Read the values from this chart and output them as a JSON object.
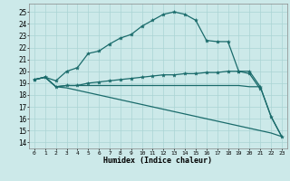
{
  "xlabel": "Humidex (Indice chaleur)",
  "xlim": [
    -0.5,
    23.5
  ],
  "ylim": [
    13.5,
    25.7
  ],
  "yticks": [
    14,
    15,
    16,
    17,
    18,
    19,
    20,
    21,
    22,
    23,
    24,
    25
  ],
  "xticks": [
    0,
    1,
    2,
    3,
    4,
    5,
    6,
    7,
    8,
    9,
    10,
    11,
    12,
    13,
    14,
    15,
    16,
    17,
    18,
    19,
    20,
    21,
    22,
    23
  ],
  "background_color": "#cce9e9",
  "grid_color": "#aad4d4",
  "line_color": "#1a6b6b",
  "lines": [
    {
      "x": [
        0,
        1,
        2,
        3,
        4,
        5,
        6,
        7,
        8,
        9,
        10,
        11,
        12,
        13,
        14,
        15,
        16,
        17,
        18,
        19,
        20,
        21
      ],
      "y": [
        19.3,
        19.5,
        19.2,
        20.0,
        20.3,
        21.5,
        21.7,
        22.3,
        22.8,
        23.1,
        23.8,
        24.3,
        24.8,
        25.0,
        24.8,
        24.3,
        22.6,
        22.5,
        22.5,
        20.0,
        19.8,
        18.5
      ],
      "marker": true
    },
    {
      "x": [
        0,
        1,
        2,
        3,
        4,
        5,
        6,
        7,
        8,
        9,
        10,
        11,
        12,
        13,
        14,
        15,
        16,
        17,
        18,
        19,
        20,
        21,
        22,
        23
      ],
      "y": [
        19.3,
        19.5,
        18.7,
        18.8,
        18.8,
        19.0,
        19.1,
        19.2,
        19.3,
        19.4,
        19.5,
        19.6,
        19.7,
        19.7,
        19.8,
        19.8,
        19.9,
        19.9,
        20.0,
        20.0,
        20.0,
        18.7,
        16.2,
        14.5
      ],
      "marker": true
    },
    {
      "x": [
        0,
        1,
        2,
        3,
        4,
        5,
        6,
        7,
        8,
        9,
        10,
        11,
        12,
        13,
        14,
        15,
        16,
        17,
        18,
        19,
        20,
        21,
        22,
        23
      ],
      "y": [
        19.3,
        19.5,
        18.7,
        18.8,
        18.8,
        18.8,
        18.8,
        18.8,
        18.8,
        18.8,
        18.8,
        18.8,
        18.8,
        18.8,
        18.8,
        18.8,
        18.8,
        18.8,
        18.8,
        18.8,
        18.7,
        18.7,
        16.2,
        14.5
      ],
      "marker": false
    },
    {
      "x": [
        0,
        1,
        2,
        3,
        4,
        5,
        6,
        7,
        8,
        9,
        10,
        11,
        12,
        13,
        14,
        15,
        16,
        17,
        18,
        19,
        20,
        21,
        22,
        23
      ],
      "y": [
        19.3,
        19.5,
        18.7,
        18.6,
        18.4,
        18.2,
        18.0,
        17.8,
        17.6,
        17.4,
        17.2,
        17.0,
        16.8,
        16.6,
        16.4,
        16.2,
        16.0,
        15.8,
        15.6,
        15.4,
        15.2,
        15.0,
        14.8,
        14.5
      ],
      "marker": false
    }
  ]
}
